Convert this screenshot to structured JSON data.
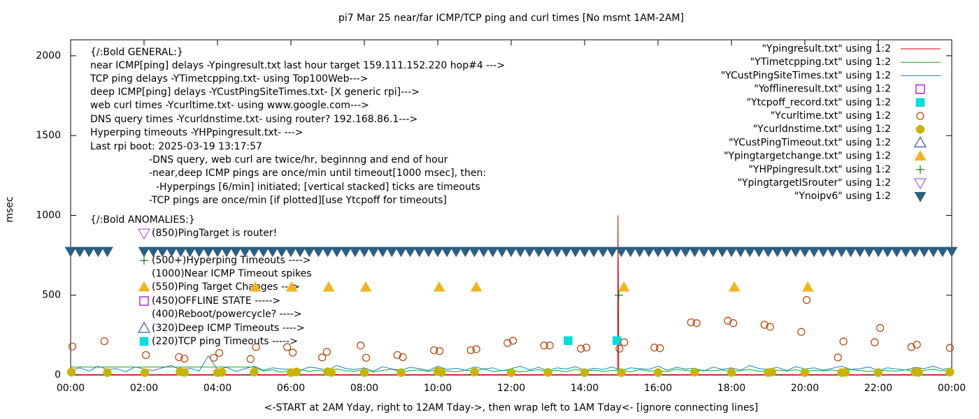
{
  "chart_data": {
    "type": "line",
    "title": "pi7 Mar 25  near/far ICMP/TCP ping and curl times [No msmt 1AM-2AM]",
    "xlabel": "<-START at 2AM Yday, right to 12AM Tday->, then wrap left to 1AM Tday<- [ignore connecting lines]",
    "ylabel": "msec",
    "xlim": [
      0,
      24
    ],
    "ylim": [
      0,
      2100
    ],
    "xticks": [
      {
        "value": 0,
        "label": "00:00"
      },
      {
        "value": 2,
        "label": "02:00"
      },
      {
        "value": 4,
        "label": "04:00"
      },
      {
        "value": 6,
        "label": "06:00"
      },
      {
        "value": 8,
        "label": "08:00"
      },
      {
        "value": 10,
        "label": "10:00"
      },
      {
        "value": 12,
        "label": "12:00"
      },
      {
        "value": 14,
        "label": "14:00"
      },
      {
        "value": 16,
        "label": "16:00"
      },
      {
        "value": 18,
        "label": "18:00"
      },
      {
        "value": 20,
        "label": "20:00"
      },
      {
        "value": 22,
        "label": "22:00"
      },
      {
        "value": 24,
        "label": "00:00"
      }
    ],
    "yticks": [
      0,
      500,
      1000,
      1500,
      2000
    ],
    "annotations": [
      "{/:Bold GENERAL:}",
      "near ICMP[ping] delays -Ypingresult.txt last hour target 159.111.152.220 hop#4 --->",
      "TCP ping delays -YTimetcpping.txt- using Top100Web--->",
      "deep ICMP[ping] delays -YCustPingSiteTimes.txt- [X generic rpi]--->",
      "web curl times -Ycurltime.txt- using www.google.com--->",
      "DNS query times -Ycurldnstime.txt- using router? 192.168.86.1--->",
      "Hyperping timeouts -YHPpingresult.txt- --->",
      "Last rpi boot: 2025-03-19 13:17:57",
      "-DNS query, web curl are twice/hr, beginnng and end of hour",
      "-near,deep ICMP pings are once/min until timeout[1000 msec], then:",
      "-Hyperpings [6/min] initiated; [vertical stacked] ticks are timeouts",
      "-TCP pings are once/min [if plotted][use Ytcpoff for timeouts]",
      "{/:Bold ANOMALIES:}",
      "(850)PingTarget is router!",
      "(500+)Hyperping Timeouts ---->",
      "(1000)Near ICMP Timeout spikes",
      "(550)Ping Target Changes --->",
      "(450)OFFLINE STATE ----->",
      "(400)Reboot/powercycle? ---->",
      "(320)Deep ICMP Timeouts ---->",
      "(220)TCP ping Timeouts ----->"
    ],
    "series": [
      {
        "name": "\"Ypingresult.txt\" using 1:2",
        "color": "#cc0000",
        "style": "line",
        "x": [
          0,
          14.9,
          14.91,
          14.93,
          24
        ],
        "values": [
          2,
          2,
          1000,
          2,
          2
        ]
      },
      {
        "name": "\"YTimetcpping.txt\" using 1:2",
        "color": "#1ea01e",
        "style": "line",
        "x": [
          0,
          0.25,
          0.5,
          0.75,
          1,
          1.25,
          1.5,
          1.75,
          2,
          2.25,
          2.5,
          2.75,
          3,
          3.25,
          3.5,
          3.75,
          4,
          4.25,
          4.5,
          4.75,
          5,
          5.25,
          5.5,
          5.75,
          6,
          6.25,
          6.5,
          6.75,
          7,
          7.25,
          7.5,
          7.75,
          8,
          8.25,
          8.5,
          8.75,
          9,
          9.25,
          9.5,
          9.75,
          10,
          10.25,
          10.5,
          10.75,
          11,
          11.25,
          11.5,
          11.75,
          12,
          12.25,
          12.5,
          12.75,
          13,
          13.25,
          13.5,
          13.75,
          14,
          14.25,
          14.5,
          14.75,
          15,
          15.25,
          15.5,
          15.75,
          16,
          16.25,
          16.5,
          16.75,
          17,
          17.25,
          17.5,
          17.75,
          18,
          18.25,
          18.5,
          18.75,
          19,
          19.25,
          19.5,
          19.75,
          20,
          20.25,
          20.5,
          20.75,
          21,
          21.25,
          21.5,
          21.75,
          22,
          22.25,
          22.5,
          22.75,
          23,
          23.25,
          23.5,
          23.75,
          24
        ],
        "values": [
          50,
          50,
          50,
          50,
          50,
          50,
          50,
          50,
          50,
          50,
          50,
          50,
          50,
          50,
          50,
          50,
          50,
          50,
          50,
          50,
          50,
          25,
          32,
          18,
          28,
          35,
          22,
          30,
          20,
          38,
          26,
          24,
          33,
          19,
          29,
          36,
          21,
          27,
          31,
          23,
          34,
          26,
          20,
          30,
          25,
          37,
          22,
          28,
          32,
          19,
          27,
          33,
          24,
          29,
          21,
          35,
          26,
          30,
          23,
          28,
          31,
          20,
          34,
          25,
          27,
          22,
          36,
          29,
          24,
          30,
          26,
          32,
          21,
          28,
          35,
          23,
          27,
          30,
          25,
          33,
          22,
          29,
          26,
          31,
          24,
          34,
          28,
          22,
          30,
          27,
          25,
          33,
          23,
          29,
          36,
          26,
          31
        ]
      },
      {
        "name": "\"YCustPingSiteTimes.txt\" using 1:2",
        "color": "#1f7fc8",
        "style": "line",
        "x": [
          0,
          0.25,
          0.5,
          0.75,
          1,
          1.25,
          1.5,
          1.75,
          2,
          2.25,
          2.5,
          2.75,
          3,
          3.25,
          3.5,
          3.75,
          4,
          4.25,
          4.5,
          4.75,
          5,
          5.25,
          5.5,
          5.75,
          6,
          6.25,
          6.5,
          6.75,
          7,
          7.25,
          7.5,
          7.75,
          8,
          8.25,
          8.5,
          8.75,
          9,
          9.25,
          9.5,
          9.75,
          10,
          10.25,
          10.5,
          10.75,
          11,
          11.25,
          11.5,
          11.75,
          12,
          12.25,
          12.5,
          12.75,
          13,
          13.25,
          13.5,
          13.75,
          14,
          14.25,
          14.5,
          14.75,
          15,
          15.25,
          15.5,
          15.75,
          16,
          16.25,
          16.5,
          16.75,
          17,
          17.25,
          17.5,
          17.75,
          18,
          18.25,
          18.5,
          18.75,
          19,
          19.25,
          19.5,
          19.75,
          20,
          20.25,
          20.5,
          20.75,
          21,
          21.25,
          21.5,
          21.75,
          22,
          22.25,
          22.5,
          22.75,
          23,
          23.25,
          23.5,
          23.75,
          24
        ],
        "values": [
          30,
          45,
          25,
          55,
          35,
          40,
          20,
          50,
          38,
          28,
          45,
          60,
          30,
          42,
          25,
          120,
          35,
          48,
          22,
          40,
          55,
          30,
          45,
          38,
          35,
          28,
          50,
          42,
          30,
          60,
          40,
          35,
          45,
          25,
          52,
          38,
          30,
          48,
          40,
          28,
          55,
          35,
          42,
          30,
          50,
          38,
          45,
          25,
          40,
          55,
          32,
          48,
          28,
          45,
          38,
          52,
          30,
          42,
          35,
          50,
          28,
          45,
          40,
          35,
          55,
          30,
          48,
          38,
          42,
          25,
          50,
          35,
          45,
          30,
          60,
          40,
          35,
          48,
          28,
          52,
          38,
          45,
          30,
          42,
          55,
          35,
          40,
          50,
          28,
          45,
          38,
          32,
          48,
          40,
          55,
          35,
          45
        ]
      },
      {
        "name": "\"Yofflineresult.txt\" using 1:2",
        "color": "#9400d3",
        "style": "points",
        "marker": "square-open",
        "x": [],
        "values": []
      },
      {
        "name": "\"Ytcpoff_record.txt\" using 1:2",
        "color": "#00dede",
        "style": "points",
        "marker": "square",
        "x": [
          13.55,
          14.88
        ],
        "values": [
          215,
          215
        ]
      },
      {
        "name": "\"Ycurltime.txt\" using 1:2",
        "color": "#b84000",
        "style": "points",
        "marker": "circle-open",
        "x": [
          0.05,
          0.92,
          2.05,
          2.95,
          3.1,
          3.9,
          4.05,
          4.9,
          5.05,
          5.9,
          6.05,
          6.85,
          6.98,
          7.9,
          8.05,
          8.9,
          9.05,
          9.9,
          10.05,
          10.9,
          11.05,
          11.9,
          12.05,
          12.9,
          13.05,
          13.9,
          14.05,
          14.95,
          15.08,
          15.9,
          16.05,
          16.9,
          17.05,
          17.9,
          18.05,
          18.9,
          19.05,
          19.9,
          20.05,
          20.9,
          21.05,
          21.9,
          22.05,
          22.9,
          23.05,
          23.95
        ],
        "values": [
          178,
          212,
          125,
          112,
          102,
          108,
          138,
          100,
          175,
          175,
          140,
          110,
          145,
          185,
          108,
          125,
          112,
          155,
          150,
          155,
          162,
          200,
          215,
          185,
          185,
          165,
          172,
          165,
          205,
          172,
          168,
          330,
          325,
          340,
          325,
          315,
          302,
          270,
          470,
          110,
          210,
          205,
          295,
          175,
          190,
          170
        ]
      },
      {
        "name": "\"Ycurldnstime.txt\" using 1:2",
        "color": "#c8b400",
        "style": "points",
        "marker": "circle",
        "x": [
          0.02,
          1,
          2.02,
          2.98,
          3.1,
          4,
          4.12,
          5,
          6,
          6.15,
          7,
          7.1,
          8,
          9,
          10,
          10.1,
          11,
          12,
          13,
          14,
          15,
          16,
          17,
          18,
          19,
          19.1,
          20,
          21,
          21.1,
          22,
          23,
          23.1,
          23.95
        ],
        "values": [
          18,
          15,
          15,
          20,
          16,
          15,
          17,
          18,
          15,
          19,
          20,
          16,
          15,
          15,
          22,
          16,
          18,
          15,
          16,
          15,
          15,
          15,
          18,
          16,
          15,
          18,
          15,
          15,
          16,
          15,
          18,
          16,
          18
        ]
      },
      {
        "name": "\"YCustPingTimeout.txt\" using 1:2",
        "color": "#3050c0",
        "style": "points",
        "marker": "triangle-open",
        "x": [],
        "values": []
      },
      {
        "name": "\"Ypingtargetchange.txt\" using 1:2",
        "color": "#f2b41e",
        "style": "points",
        "marker": "triangle",
        "x": [
          5.03,
          6.02,
          7.03,
          8.04,
          10.04,
          11.05,
          15.07,
          18.08,
          20.08
        ],
        "values": [
          550,
          550,
          550,
          550,
          550,
          550,
          550,
          550,
          550
        ]
      },
      {
        "name": "\"YHPpingresult.txt\" using 1:2",
        "color": "#117a11",
        "style": "points",
        "marker": "plus",
        "x": [
          14.93
        ],
        "values": [
          500
        ]
      },
      {
        "name": "\"YpingtargetISrouter\" using 1:2",
        "color": "#b060e0",
        "style": "points",
        "marker": "triangle-down-open",
        "x": [],
        "values": []
      },
      {
        "name": "\"Ynoipv6\" using 1:2",
        "color": "#2c5f80",
        "style": "points",
        "marker": "triangle-down",
        "x": [
          0,
          0.25,
          0.5,
          0.75,
          1,
          2,
          2.25,
          2.5,
          2.75,
          3,
          3.25,
          3.5,
          3.75,
          4,
          4.25,
          4.5,
          4.75,
          5,
          5.25,
          5.5,
          5.75,
          6,
          6.25,
          6.5,
          6.75,
          7,
          7.25,
          7.5,
          7.75,
          8,
          8.25,
          8.5,
          8.75,
          9,
          9.25,
          9.5,
          9.75,
          10,
          10.25,
          10.5,
          10.75,
          11,
          11.25,
          11.5,
          11.75,
          12,
          12.25,
          12.5,
          12.75,
          13,
          13.25,
          13.5,
          13.75,
          14,
          14.25,
          14.5,
          14.75,
          15,
          15.25,
          15.5,
          15.75,
          16,
          16.25,
          16.5,
          16.75,
          17,
          17.25,
          17.5,
          17.75,
          18,
          18.25,
          18.5,
          18.75,
          19,
          19.25,
          19.5,
          19.75,
          20,
          20.25,
          20.5,
          20.75,
          21,
          21.25,
          21.5,
          21.75,
          22,
          22.25,
          22.5,
          22.75,
          23,
          23.25,
          23.5,
          23.75,
          24
        ],
        "values": [
          775,
          775,
          775,
          775,
          775,
          775,
          775,
          775,
          775,
          775,
          775,
          775,
          775,
          775,
          775,
          775,
          775,
          775,
          775,
          775,
          775,
          775,
          775,
          775,
          775,
          775,
          775,
          775,
          775,
          775,
          775,
          775,
          775,
          775,
          775,
          775,
          775,
          775,
          775,
          775,
          775,
          775,
          775,
          775,
          775,
          775,
          775,
          775,
          775,
          775,
          775,
          775,
          775,
          775,
          775,
          775,
          775,
          775,
          775,
          775,
          775,
          775,
          775,
          775,
          775,
          775,
          775,
          775,
          775,
          775,
          775,
          775,
          775,
          775,
          775,
          775,
          775,
          775,
          775,
          775,
          775,
          775,
          775,
          775,
          775,
          775,
          775,
          775,
          775,
          775,
          775,
          775,
          775,
          775
        ]
      }
    ]
  }
}
